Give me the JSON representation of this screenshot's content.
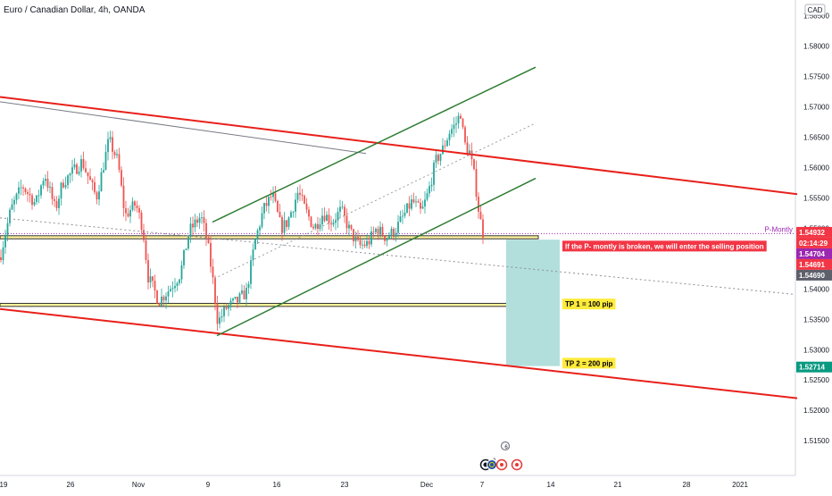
{
  "header": {
    "symbol_title": "Euro / Canadian Dollar, 4h, OANDA",
    "currency_badge": "CAD"
  },
  "chart_data": {
    "type": "candlestick",
    "title": "Euro / Canadian Dollar, 4h, OANDA",
    "y_axis": {
      "ylim": [
        1.5115,
        1.5855
      ],
      "ticks": [
        "1.58500",
        "1.58000",
        "1.57500",
        "1.57000",
        "1.56500",
        "1.56000",
        "1.55500",
        "1.55000",
        "1.54500",
        "1.54000",
        "1.53500",
        "1.53000",
        "1.52500",
        "1.52000",
        "1.51500"
      ],
      "tick_values": [
        1.585,
        1.58,
        1.575,
        1.57,
        1.565,
        1.56,
        1.555,
        1.55,
        1.545,
        1.54,
        1.535,
        1.53,
        1.525,
        1.52,
        1.515
      ]
    },
    "x_axis": {
      "xlim": [
        0,
        932
      ],
      "ticks": [
        {
          "label": "19",
          "x": 4
        },
        {
          "label": "26",
          "x": 79
        },
        {
          "label": "Nov",
          "x": 155
        },
        {
          "label": "9",
          "x": 233
        },
        {
          "label": "16",
          "x": 310
        },
        {
          "label": "23",
          "x": 386
        },
        {
          "label": "Dec",
          "x": 478
        },
        {
          "label": "7",
          "x": 540
        },
        {
          "label": "14",
          "x": 617
        },
        {
          "label": "21",
          "x": 692
        },
        {
          "label": "28",
          "x": 769
        },
        {
          "label": "2021",
          "x": 829
        }
      ]
    },
    "price_labels": [
      {
        "value": 1.54932,
        "text": "1.54932",
        "bg": "#f23645",
        "fg": "#ffffff"
      },
      {
        "value": 1.54815,
        "text": "02:14:29",
        "bg": "#f23645",
        "fg": "#ffffff"
      },
      {
        "value": 1.54704,
        "text": "1.54704",
        "bg": "#9c27b0",
        "fg": "#ffffff"
      },
      {
        "value": 1.54691,
        "text": "1.54691",
        "bg": "#f23645",
        "fg": "#ffffff"
      },
      {
        "value": 1.5469,
        "text": "1.54690",
        "bg": "#5d606b",
        "fg": "#ffffff"
      },
      {
        "value": 1.52714,
        "text": "1.52714",
        "bg": "#089981",
        "fg": "#ffffff"
      }
    ],
    "trend_lines": [
      {
        "name": "upper-red-channel",
        "color": "#e8201a",
        "width": 2,
        "points": [
          [
            0,
            1.5716
          ],
          [
            893,
            1.5556
          ]
        ]
      },
      {
        "name": "gray-line",
        "color": "#787b86",
        "width": 1,
        "points": [
          [
            0,
            1.5708
          ],
          [
            410,
            1.5623
          ]
        ]
      },
      {
        "name": "lower-red-channel",
        "color": "#e8201a",
        "width": 2,
        "points": [
          [
            0,
            1.5367
          ],
          [
            893,
            1.522
          ]
        ]
      },
      {
        "name": "green-channel-top",
        "color": "#2e7d32",
        "width": 1.5,
        "points": [
          [
            238,
            1.551
          ],
          [
            600,
            1.5765
          ]
        ]
      },
      {
        "name": "green-channel-bottom",
        "color": "#2e7d32",
        "width": 1.5,
        "points": [
          [
            243,
            1.5323
          ],
          [
            600,
            1.5582
          ]
        ]
      },
      {
        "name": "dotted-median",
        "color": "#9aa0a6",
        "width": 1,
        "dash": "2,3",
        "points": [
          [
            240,
            1.5417
          ],
          [
            600,
            1.5673
          ]
        ]
      },
      {
        "name": "dotted-diagonal",
        "color": "#8e8e99",
        "width": 1,
        "dash": "2,3",
        "points": [
          [
            0,
            1.5517
          ],
          [
            890,
            1.5391
          ]
        ]
      }
    ],
    "horizontal_lines": [
      {
        "name": "p-montly-line",
        "value": 1.5491,
        "color": "#9c27b0",
        "dash": "1,2",
        "label": "P-Montly"
      }
    ],
    "zones": [
      {
        "name": "upper-yellow-zone",
        "x_from": 0,
        "x_to": 603,
        "y_top": 1.54875,
        "y_bottom": 1.54825,
        "fill": "#fff59d",
        "stroke": "#333333"
      },
      {
        "name": "lower-yellow-zone",
        "x_from": 0,
        "x_to": 603,
        "y_top": 1.53762,
        "y_bottom": 1.53712,
        "fill": "#fff59d",
        "stroke": "#333333"
      },
      {
        "name": "target-zone",
        "x_from": 567,
        "x_to": 627,
        "y_top": 1.5481,
        "y_bottom": 1.5273,
        "fill": "#b2dfdb",
        "stroke": "none"
      }
    ],
    "annotations": [
      {
        "name": "selling-note",
        "text": "If the P- montly  is broken, we will enter the selling position",
        "x": 630,
        "y_value": 1.54705,
        "bg": "#f23645",
        "fg": "#ffffff"
      },
      {
        "name": "tp1-note",
        "text": "TP 1 = 100 pip",
        "x": 630,
        "y_value": 1.53752,
        "bg": "#ffeb3b",
        "fg": "#000000"
      },
      {
        "name": "tp2-note",
        "text": "TP 2 = 200 pip",
        "x": 630,
        "y_value": 1.52778,
        "bg": "#ffeb3b",
        "fg": "#000000"
      }
    ],
    "candles_ohlc_anchor_path": [
      [
        0,
        1.5452
      ],
      [
        12,
        1.553
      ],
      [
        25,
        1.557
      ],
      [
        40,
        1.554
      ],
      [
        50,
        1.559
      ],
      [
        62,
        1.553
      ],
      [
        70,
        1.5575
      ],
      [
        80,
        1.559
      ],
      [
        92,
        1.561
      ],
      [
        108,
        1.555
      ],
      [
        122,
        1.5645
      ],
      [
        132,
        1.561
      ],
      [
        140,
        1.552
      ],
      [
        152,
        1.554
      ],
      [
        160,
        1.55
      ],
      [
        166,
        1.542
      ],
      [
        178,
        1.538
      ],
      [
        190,
        1.54
      ],
      [
        202,
        1.5425
      ],
      [
        212,
        1.5495
      ],
      [
        225,
        1.552
      ],
      [
        232,
        1.548
      ],
      [
        238,
        1.542
      ],
      [
        244,
        1.5345
      ],
      [
        254,
        1.537
      ],
      [
        266,
        1.538
      ],
      [
        276,
        1.5395
      ],
      [
        286,
        1.548
      ],
      [
        295,
        1.553
      ],
      [
        305,
        1.5555
      ],
      [
        315,
        1.55
      ],
      [
        322,
        1.551
      ],
      [
        334,
        1.556
      ],
      [
        342,
        1.553
      ],
      [
        352,
        1.55
      ],
      [
        362,
        1.5525
      ],
      [
        372,
        1.551
      ],
      [
        382,
        1.553
      ],
      [
        392,
        1.5495
      ],
      [
        402,
        1.547
      ],
      [
        412,
        1.5475
      ],
      [
        422,
        1.55
      ],
      [
        432,
        1.5485
      ],
      [
        442,
        1.5495
      ],
      [
        452,
        1.552
      ],
      [
        462,
        1.5545
      ],
      [
        472,
        1.5525
      ],
      [
        480,
        1.556
      ],
      [
        488,
        1.561
      ],
      [
        496,
        1.563
      ],
      [
        504,
        1.566
      ],
      [
        510,
        1.567
      ],
      [
        516,
        1.569
      ],
      [
        520,
        1.564
      ],
      [
        526,
        1.5625
      ],
      [
        532,
        1.558
      ],
      [
        537,
        1.552
      ],
      [
        541,
        1.5493
      ]
    ],
    "event_markers": [
      "6",
      "2"
    ]
  }
}
